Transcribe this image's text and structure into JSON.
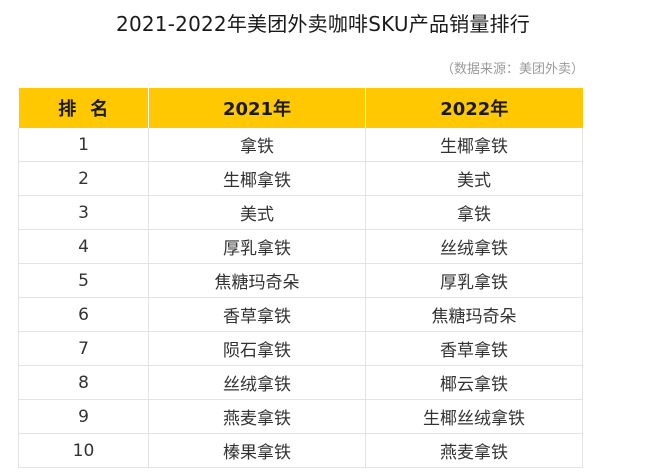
{
  "title": "2021-2022年美团外卖咖啡SKU产品销量排行",
  "source": "（数据来源：美团外卖）",
  "colors": {
    "header_bg": "#ffc800",
    "border": "#e3e3e3",
    "text": "#333333",
    "source_text": "#9a9a9a"
  },
  "table": {
    "headers": [
      "排名",
      "2021年",
      "2022年"
    ],
    "rows": [
      {
        "rank": "1",
        "y2021": "拿铁",
        "y2022": "生椰拿铁"
      },
      {
        "rank": "2",
        "y2021": "生椰拿铁",
        "y2022": "美式"
      },
      {
        "rank": "3",
        "y2021": "美式",
        "y2022": "拿铁"
      },
      {
        "rank": "4",
        "y2021": "厚乳拿铁",
        "y2022": "丝绒拿铁"
      },
      {
        "rank": "5",
        "y2021": "焦糖玛奇朵",
        "y2022": "厚乳拿铁"
      },
      {
        "rank": "6",
        "y2021": "香草拿铁",
        "y2022": "焦糖玛奇朵"
      },
      {
        "rank": "7",
        "y2021": "陨石拿铁",
        "y2022": "香草拿铁"
      },
      {
        "rank": "8",
        "y2021": "丝绒拿铁",
        "y2022": "椰云拿铁"
      },
      {
        "rank": "9",
        "y2021": "燕麦拿铁",
        "y2022": "生椰丝绒拿铁"
      },
      {
        "rank": "10",
        "y2021": "榛果拿铁",
        "y2022": "燕麦拿铁"
      }
    ]
  }
}
